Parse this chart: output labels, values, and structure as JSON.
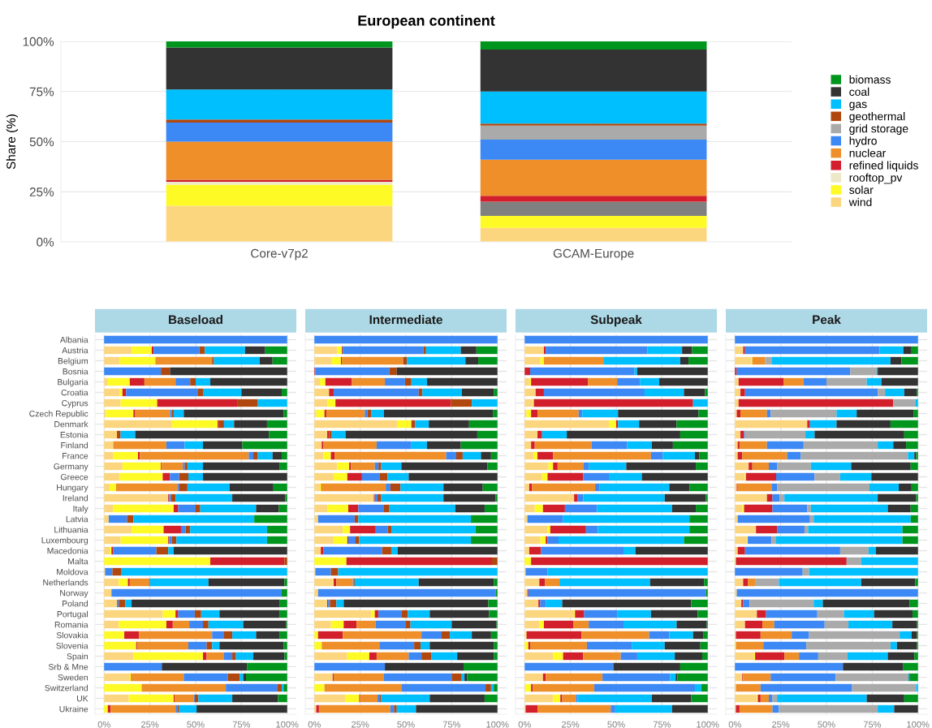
{
  "chart_data": [
    {
      "type": "bar",
      "stacked": true,
      "title": "European continent",
      "ylabel": "Share (%)",
      "categories": [
        "Core-v7p2",
        "GCAM-Europe"
      ],
      "ylim": [
        0,
        100
      ],
      "yticks": [
        {
          "value": 0,
          "label": "0%"
        },
        {
          "value": 25,
          "label": "25%"
        },
        {
          "value": 50,
          "label": "50%"
        },
        {
          "value": 75,
          "label": "75%"
        },
        {
          "value": 100,
          "label": "100%"
        }
      ],
      "grid": true,
      "legend": "right",
      "series": [
        {
          "name": "wind",
          "color": "#fcd67f",
          "values": [
            18,
            7
          ]
        },
        {
          "name": "solar",
          "color": "#fefa25",
          "values": [
            10.5,
            6
          ]
        },
        {
          "name": "rooftop_pv",
          "color": "#ede8c8",
          "colors": [
            "#ede8c8",
            "#808080"
          ],
          "values": [
            1.5,
            7
          ]
        },
        {
          "name": "refined liquids",
          "color": "#d21f2b",
          "values": [
            1,
            3
          ]
        },
        {
          "name": "nuclear",
          "color": "#ef8f2a",
          "values": [
            19,
            18
          ]
        },
        {
          "name": "hydro",
          "color": "#3c88f5",
          "values": [
            9.5,
            10
          ]
        },
        {
          "name": "grid storage",
          "color": "#aaaaaa",
          "values": [
            0,
            7
          ]
        },
        {
          "name": "geothermal",
          "color": "#b0470f",
          "values": [
            1.5,
            1
          ]
        },
        {
          "name": "gas",
          "color": "#00bfff",
          "values": [
            15,
            16
          ]
        },
        {
          "name": "coal",
          "color": "#333333",
          "values": [
            21,
            21
          ]
        },
        {
          "name": "biomass",
          "color": "#00961e",
          "values": [
            3,
            4
          ]
        }
      ]
    },
    {
      "type": "bar",
      "stacked": true,
      "orientation": "horizontal",
      "title": "Baseload",
      "categories": [
        "Albania",
        "Austria",
        "Belgium",
        "Bosnia",
        "Bulgaria",
        "Croatia",
        "Cyprus",
        "Czech Republic",
        "Denmark",
        "Estonia",
        "Finland",
        "France",
        "Germany",
        "Greece",
        "Hungary",
        "Ireland",
        "Italy",
        "Latvia",
        "Lithuania",
        "Luxembourg",
        "Macedonia",
        "Malta",
        "Moldova",
        "Netherlands",
        "Norway",
        "Poland",
        "Portugal",
        "Romania",
        "Slovakia",
        "Slovenia",
        "Spain",
        "Srb & Mne",
        "Sweden",
        "Switzerland",
        "UK",
        "Ukraine"
      ],
      "xlim": [
        -5,
        105
      ],
      "xticks": [
        {
          "value": 0,
          "label": "0%"
        },
        {
          "value": 25,
          "label": "25%"
        },
        {
          "value": 50,
          "label": "50%"
        },
        {
          "value": 75,
          "label": "75%"
        },
        {
          "value": 100,
          "label": "100%"
        }
      ],
      "grid": true,
      "series": [
        {
          "color": "#fcd67f",
          "values": [
            0,
            15,
            8.5,
            0,
            2,
            8.5,
            9,
            1,
            37,
            7,
            5,
            5,
            10,
            8.5,
            3,
            35,
            5,
            2.5,
            15,
            9,
            3,
            0,
            0.5,
            8,
            4,
            7,
            32,
            8,
            0,
            0,
            16,
            0,
            14,
            0,
            13.5,
            0
          ]
        },
        {
          "color": "#fefa25",
          "values": [
            0,
            11,
            19.5,
            0,
            12,
            1.5,
            20,
            15,
            25,
            0,
            0,
            13.5,
            21,
            23.5,
            3.5,
            0,
            33,
            0,
            17.5,
            26,
            1,
            58,
            0,
            5,
            0,
            0,
            7,
            26,
            11,
            17.5,
            38,
            0,
            0.5,
            20.5,
            24.5,
            2
          ]
        },
        {
          "color": "#d21f2b",
          "values": [
            0,
            1,
            0,
            0,
            8,
            2,
            44,
            1,
            0.5,
            0,
            0,
            1,
            0.5,
            4,
            0,
            0.5,
            2.5,
            0,
            9.5,
            0.5,
            1,
            40.5,
            0,
            1,
            0,
            0,
            1.5,
            3.5,
            8,
            0.5,
            2,
            0,
            0,
            0,
            0.5,
            1.5
          ]
        },
        {
          "color": "#ef8f2a",
          "values": [
            0,
            0,
            31,
            0,
            17,
            0,
            0,
            19,
            0,
            0,
            29,
            59.5,
            11.5,
            0,
            33.5,
            0,
            0,
            0,
            0,
            0,
            0,
            0,
            0,
            10.5,
            0,
            0,
            0,
            9,
            40,
            28,
            9.5,
            0,
            29,
            46,
            10.5,
            35.5
          ]
        },
        {
          "color": "#3c88f5",
          "values": [
            100,
            25,
            0,
            31,
            8,
            39,
            0,
            1,
            0,
            0,
            10,
            2.5,
            1,
            5,
            1,
            1,
            9.5,
            10,
            2.5,
            1.5,
            23.5,
            0,
            4,
            0,
            93,
            1,
            9,
            7.5,
            6.5,
            10,
            4.5,
            31.5,
            24,
            28,
            0.5,
            1
          ]
        },
        {
          "color": "#b0470f",
          "values": [
            0,
            3,
            1,
            5,
            3,
            3,
            11,
            1,
            3,
            2,
            0,
            2.5,
            1.5,
            5,
            4.5,
            2.5,
            2.5,
            3.5,
            2.5,
            2.5,
            6.5,
            1.5,
            5,
            0.5,
            0,
            3.5,
            3.5,
            3,
            4.5,
            3,
            2,
            0,
            6.5,
            2.5,
            2,
            1
          ]
        },
        {
          "color": "#00bfff",
          "values": [
            0,
            22,
            25,
            0,
            8,
            21,
            16,
            5.5,
            5.5,
            8,
            10,
            8,
            8.5,
            8,
            23,
            31,
            30.5,
            66,
            42,
            49.5,
            3,
            0,
            90.5,
            32,
            0,
            3.5,
            10,
            19,
            13,
            4,
            9.5,
            0,
            2,
            1,
            18.5,
            9.5
          ]
        },
        {
          "color": "#333333",
          "values": [
            0,
            11,
            7,
            64,
            42,
            22,
            0,
            54.5,
            18,
            73,
            21.5,
            5,
            42,
            46,
            24,
            29,
            12.5,
            0,
            0,
            0,
            62,
            0,
            0,
            41.5,
            0,
            81,
            33,
            23.5,
            13,
            35,
            17,
            46.5,
            1.5,
            0,
            25,
            49.5
          ]
        },
        {
          "color": "#00961e",
          "values": [
            0,
            12,
            8,
            0,
            0,
            3,
            0,
            2,
            11,
            10,
            24.5,
            3,
            4,
            0,
            7.5,
            1,
            4.5,
            18,
            11,
            11,
            0,
            0,
            0,
            1.5,
            3,
            4,
            4,
            0.5,
            4,
            2,
            1.5,
            22,
            22.5,
            2,
            5,
            0
          ]
        }
      ]
    },
    {
      "type": "bar",
      "stacked": true,
      "orientation": "horizontal",
      "title": "Intermediate",
      "tick_labels": "x",
      "categories": [
        null,
        null,
        null,
        null,
        null,
        null,
        null,
        null,
        null,
        null,
        null,
        null,
        null,
        null,
        null,
        null,
        null,
        null,
        null,
        null,
        null,
        null,
        null,
        null,
        null,
        null,
        null,
        null,
        null,
        null,
        null,
        null,
        null,
        null,
        null,
        null
      ],
      "xlim": [
        -5,
        105
      ],
      "xticks": [
        {
          "value": 0,
          "label": "0%"
        },
        {
          "value": 25,
          "label": "25%"
        },
        {
          "value": 50,
          "label": "50%"
        },
        {
          "value": 75,
          "label": "75%"
        },
        {
          "value": 100,
          "label": "100%"
        }
      ],
      "grid": true,
      "series": [
        {
          "color": "#fcd67f",
          "values": [
            0,
            12.5,
            9.5,
            0,
            3,
            8,
            7,
            1,
            45.5,
            7,
            4,
            5,
            12.5,
            10.5,
            3,
            32.5,
            7,
            2,
            15.5,
            10.5,
            3.5,
            0,
            0.5,
            10,
            2,
            7,
            31,
            9,
            0,
            0,
            18,
            0,
            10,
            0,
            17,
            1
          ]
        },
        {
          "color": "#fefa25",
          "values": [
            0,
            2.5,
            5,
            0,
            3,
            0,
            4.5,
            4.5,
            7.5,
            0,
            0,
            4,
            6.5,
            7.5,
            0.5,
            0,
            11.5,
            0,
            4,
            7.5,
            0,
            17.5,
            0,
            0.5,
            0,
            0,
            2,
            7,
            2,
            4,
            12,
            0,
            0,
            5.5,
            7.5,
            0
          ]
        },
        {
          "color": "#d21f2b",
          "values": [
            0,
            0.5,
            0.5,
            0.5,
            14.5,
            2.5,
            63,
            1,
            0.5,
            1,
            1,
            2,
            1,
            8,
            0,
            0.5,
            5.5,
            0,
            14,
            0.5,
            1.5,
            79.5,
            0,
            1.5,
            0,
            0.5,
            2,
            7,
            13.5,
            0,
            4,
            0,
            0.5,
            0,
            0.5,
            1.5
          ]
        },
        {
          "color": "#ef8f2a",
          "values": [
            0,
            0,
            33.5,
            0,
            18,
            0,
            0,
            21,
            0,
            0,
            29,
            61,
            13,
            0,
            35.5,
            0,
            0,
            0,
            0,
            0,
            0,
            0,
            0,
            9,
            0,
            0,
            0,
            10.5,
            43,
            31.5,
            17.5,
            0,
            27.5,
            42,
            9.5,
            39
          ]
        },
        {
          "color": "#3c88f5",
          "values": [
            100,
            44,
            0,
            40.5,
            11,
            46.5,
            0,
            1.5,
            0,
            0,
            19,
            5.5,
            2,
            9.5,
            2.5,
            1.5,
            14,
            20,
            6.5,
            4,
            32,
            0,
            8.5,
            0.5,
            97,
            1,
            12.5,
            16.5,
            11,
            19,
            7,
            38.5,
            37,
            46,
            1,
            2
          ]
        },
        {
          "color": "#b0470f",
          "values": [
            0,
            1.5,
            2,
            4,
            3.5,
            2,
            11.5,
            2,
            1.5,
            1.5,
            0,
            3.5,
            1.5,
            4.5,
            5.5,
            2,
            3,
            2,
            2,
            2,
            5,
            3,
            4,
            0.5,
            0,
            3.5,
            3.5,
            2.5,
            4.5,
            3.5,
            5.5,
            0,
            5.5,
            3,
            1,
            1.5
          ]
        },
        {
          "color": "#00bfff",
          "values": [
            0,
            19,
            32,
            0,
            8.5,
            21.5,
            14,
            7,
            7.5,
            7.5,
            8.5,
            10,
            11,
            11.5,
            23.5,
            34,
            36,
            61.5,
            46,
            61,
            3.5,
            0,
            87,
            35,
            0,
            4,
            12,
            22.5,
            12,
            5,
            14,
            0,
            1.5,
            1.5,
            26.5,
            10.5
          ]
        },
        {
          "color": "#333333",
          "values": [
            0,
            8.5,
            7,
            55,
            38.5,
            17.5,
            0,
            59.5,
            22,
            72,
            18.5,
            5.5,
            47,
            48.5,
            21.5,
            28.5,
            16,
            0,
            0,
            0,
            54.5,
            0,
            0,
            41,
            0,
            79,
            32.5,
            24.5,
            10.5,
            35,
            20,
            43,
            1.5,
            0,
            30,
            44.5
          ]
        },
        {
          "color": "#00961e",
          "values": [
            0,
            11.5,
            10.5,
            0,
            0,
            2,
            0,
            2.5,
            15.5,
            11,
            20,
            3.5,
            5.5,
            0,
            8,
            1,
            7,
            14.5,
            12,
            14.5,
            0,
            0,
            0,
            2,
            1,
            5,
            4.5,
            0.5,
            3.5,
            2,
            2,
            18.5,
            16.5,
            2,
            7,
            0
          ]
        }
      ]
    },
    {
      "type": "bar",
      "stacked": true,
      "orientation": "horizontal",
      "title": "Subpeak",
      "tick_labels": "x",
      "categories": [
        null,
        null,
        null,
        null,
        null,
        null,
        null,
        null,
        null,
        null,
        null,
        null,
        null,
        null,
        null,
        null,
        null,
        null,
        null,
        null,
        null,
        null,
        null,
        null,
        null,
        null,
        null,
        null,
        null,
        null,
        null,
        null,
        null,
        null,
        null,
        null
      ],
      "xlim": [
        -5,
        105
      ],
      "xticks": [
        {
          "value": 0,
          "label": "0%"
        },
        {
          "value": 25,
          "label": "25%"
        },
        {
          "value": 50,
          "label": "50%"
        },
        {
          "value": 75,
          "label": "75%"
        },
        {
          "value": 100,
          "label": "100%"
        }
      ],
      "grid": true,
      "series": [
        {
          "color": "#fcd67f",
          "values": [
            0,
            10.5,
            8.5,
            0,
            2.5,
            6,
            4.5,
            1,
            46,
            7,
            3.5,
            5,
            13,
            9.5,
            2.5,
            27,
            5.5,
            1.5,
            12.5,
            8.5,
            2.5,
            0,
            0.5,
            8,
            1.5,
            7.5,
            27,
            8,
            0.5,
            0,
            15.5,
            0,
            10,
            0.5,
            15.5,
            0.5
          ]
        },
        {
          "color": "#fefa25",
          "values": [
            0,
            0,
            2,
            0,
            1,
            0,
            0.5,
            2.5,
            4,
            0,
            0,
            2,
            2.5,
            3,
            0,
            0,
            4.5,
            0,
            1.5,
            3,
            0,
            3.5,
            0,
            0,
            0,
            0,
            0.5,
            2.5,
            0.5,
            2,
            5.5,
            0,
            0,
            3,
            4,
            0
          ]
        },
        {
          "color": "#d21f2b",
          "values": [
            0,
            1,
            0,
            3,
            31,
            4.5,
            87,
            3.5,
            1,
            2.5,
            2,
            8.5,
            2.5,
            19.5,
            1.5,
            2,
            12,
            0,
            19.5,
            1,
            6.5,
            96.5,
            0,
            3,
            0.5,
            1,
            5,
            16,
            30,
            1,
            11,
            0,
            1.5,
            1,
            1,
            6.5
          ]
        },
        {
          "color": "#ef8f2a",
          "values": [
            0,
            0,
            32.5,
            0,
            16,
            0,
            0,
            22.5,
            0,
            0,
            31,
            53.5,
            14,
            0,
            34.5,
            0,
            0,
            0,
            0,
            0,
            0,
            0,
            0,
            8,
            0,
            0,
            0,
            8.5,
            37,
            31,
            20.5,
            0,
            31,
            33.5,
            7.5,
            40
          ]
        },
        {
          "color": "#3c88f5",
          "values": [
            100,
            55.5,
            0,
            57,
            12.5,
            55,
            0,
            2,
            0,
            0,
            19.5,
            6.5,
            3,
            14,
            2.5,
            3,
            17.5,
            19.5,
            6.5,
            6,
            45,
            0,
            12,
            0,
            97,
            3,
            18,
            19,
            11,
            24.5,
            9,
            48.5,
            37,
            55,
            1,
            2.5
          ]
        },
        {
          "color": "#00bfff",
          "values": [
            0,
            19,
            42,
            1.5,
            10.5,
            21.5,
            8,
            19.5,
            11.5,
            13.5,
            13.5,
            17.5,
            20.5,
            18,
            38,
            44.5,
            41,
            69,
            50,
            68.5,
            6.5,
            0,
            87.5,
            49.5,
            0,
            9,
            18.5,
            29,
            13,
            18,
            20.5,
            0,
            3,
            3.5,
            40.5,
            31
          ]
        },
        {
          "color": "#333333",
          "values": [
            0,
            5.5,
            4.5,
            38.5,
            26.5,
            11.5,
            0,
            44,
            20.5,
            62,
            11.5,
            2.5,
            38,
            36,
            11,
            22.5,
            13,
            0,
            0,
            0,
            39.5,
            0,
            0,
            29.5,
            0,
            70.5,
            25.5,
            16.5,
            5.5,
            19.5,
            15,
            36.5,
            1,
            0,
            21.5,
            19.5
          ]
        },
        {
          "color": "#00961e",
          "values": [
            0,
            8.5,
            10.5,
            0,
            0,
            1.5,
            0,
            5,
            17,
            15,
            19,
            4.5,
            6.5,
            0,
            10,
            1,
            6.5,
            10,
            10,
            13,
            0,
            0,
            0,
            2,
            1,
            9,
            5.5,
            0.5,
            2.5,
            4,
            3,
            15,
            16.5,
            3.5,
            9,
            0
          ]
        }
      ]
    },
    {
      "type": "bar",
      "stacked": true,
      "orientation": "horizontal",
      "title": "Peak",
      "tick_labels": "x",
      "categories": [
        null,
        null,
        null,
        null,
        null,
        null,
        null,
        null,
        null,
        null,
        null,
        null,
        null,
        null,
        null,
        null,
        null,
        null,
        null,
        null,
        null,
        null,
        null,
        null,
        null,
        null,
        null,
        null,
        null,
        null,
        null,
        null,
        null,
        null,
        null,
        null
      ],
      "xlim": [
        -5,
        105
      ],
      "xticks": [
        {
          "value": 0,
          "label": "0%"
        },
        {
          "value": 25,
          "label": "25%"
        },
        {
          "value": 50,
          "label": "50%"
        },
        {
          "value": 75,
          "label": "75%"
        },
        {
          "value": 100,
          "label": "100%"
        }
      ],
      "grid": true,
      "series": [
        {
          "color": "#fcd67f",
          "values": [
            0,
            4.5,
            9,
            0,
            2,
            3,
            2,
            1,
            39.5,
            3,
            1.5,
            1.5,
            7.5,
            5.5,
            1,
            17.5,
            4,
            1.5,
            11.5,
            6.5,
            1.5,
            0,
            0,
            4.5,
            1,
            3.5,
            12,
            5.5,
            0.5,
            0,
            10.5,
            0,
            4,
            0.5,
            12,
            0.5
          ]
        },
        {
          "color": "#fefa25",
          "values": [
            0,
            0,
            0.5,
            0,
            0,
            0,
            0,
            0,
            0,
            0,
            0,
            0,
            0,
            0.5,
            0,
            0,
            1,
            0,
            0,
            0.5,
            0,
            0.5,
            0,
            0,
            0,
            0,
            0,
            0,
            0,
            0.5,
            0.5,
            0,
            0,
            0,
            0.5,
            0
          ]
        },
        {
          "color": "#d21f2b",
          "values": [
            0,
            1,
            0,
            1,
            24.5,
            2.5,
            84.5,
            2,
            1.5,
            2,
            1,
            2.5,
            2,
            16.5,
            0.5,
            3,
            15.5,
            0,
            11.5,
            0,
            4,
            60.5,
            0,
            2.5,
            0,
            1,
            5,
            9.5,
            13.5,
            0,
            16,
            0,
            0.5,
            0,
            1.5,
            2
          ]
        },
        {
          "color": "#ef8f2a",
          "values": [
            0,
            0,
            7,
            0,
            11,
            0,
            0,
            14.5,
            0,
            0,
            15,
            24.5,
            9,
            0,
            18.5,
            0,
            0,
            0,
            0,
            0,
            0,
            0,
            0,
            4,
            0,
            0,
            0,
            6.5,
            17,
            15,
            8,
            0,
            15,
            13.5,
            4.5,
            18
          ]
        },
        {
          "color": "#3c88f5",
          "values": [
            100,
            73.5,
            0,
            62,
            12.5,
            72.5,
            0,
            2,
            0,
            0.5,
            20,
            7.5,
            4.5,
            21,
            3,
            4,
            19,
            39.5,
            15,
            13,
            52,
            0,
            37,
            0,
            99,
            3.5,
            28,
            27.5,
            9.5,
            23.5,
            10.5,
            59,
            35.5,
            50,
            2,
            3.5
          ]
        },
        {
          "color": "#aaaaaa",
          "values": [
            0,
            0,
            3.5,
            14.5,
            22,
            4,
            12,
            36,
            0,
            33,
            40.5,
            58.5,
            18.5,
            14,
            50.5,
            2.5,
            2,
            2,
            2,
            2.5,
            15.5,
            8,
            3.5,
            13,
            0,
            35,
            14.5,
            13,
            49.5,
            46,
            16,
            0,
            39.5,
            35,
            2.5,
            54
          ]
        },
        {
          "color": "#00bfff",
          "values": [
            0,
            13,
            65,
            0.5,
            8,
            10.5,
            1.5,
            11,
            14.5,
            5,
            8.5,
            3.5,
            22,
            17,
            16,
            51,
            42,
            53,
            51.5,
            69,
            4,
            31,
            59.5,
            45,
            0,
            5,
            16.5,
            24,
            6.5,
            3.5,
            22,
            0,
            0.5,
            1,
            49,
            9
          ]
        },
        {
          "color": "#333333",
          "values": [
            0,
            4.5,
            6,
            22,
            20,
            7,
            0,
            31,
            29.5,
            49,
            7,
            1,
            32.5,
            25.5,
            7,
            21,
            12.5,
            0,
            0,
            0,
            23,
            0,
            0,
            29.5,
            0,
            47.5,
            21,
            13.5,
            3,
            11,
            14.5,
            33,
            0.5,
            0,
            20.5,
            13
          ]
        },
        {
          "color": "#00961e",
          "values": [
            0,
            3.5,
            9,
            0,
            0,
            0.5,
            0,
            2.5,
            15,
            7.5,
            6.5,
            1,
            4,
            0,
            3.5,
            1,
            4,
            4,
            8.5,
            8.5,
            0,
            0,
            0,
            1.5,
            0,
            4.5,
            3,
            0.5,
            0.5,
            0.5,
            2,
            8,
            4.5,
            0,
            7.5,
            0
          ]
        }
      ]
    }
  ]
}
